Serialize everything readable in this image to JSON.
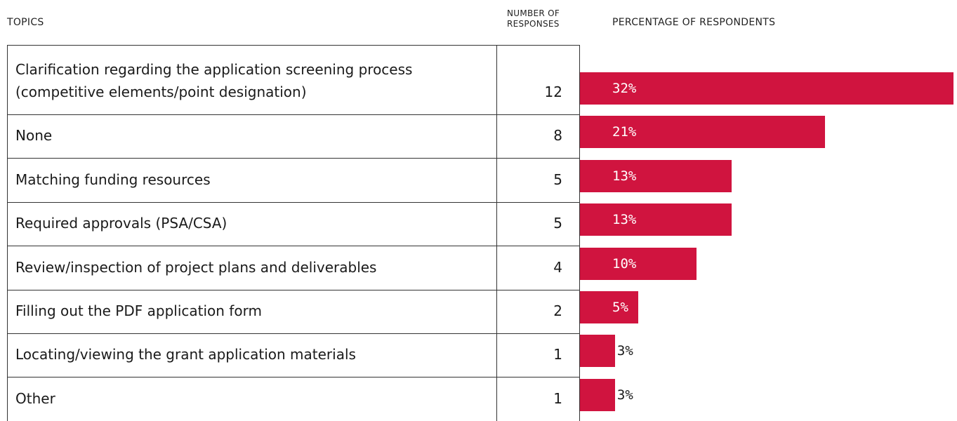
{
  "chart_data": {
    "type": "bar",
    "orientation": "horizontal",
    "columns": [
      "TOPICS",
      "NUMBER OF RESPONSES",
      "PERCENTAGE OF RESPONDENTS"
    ],
    "categories": [
      "Clarification regarding the application screening process (competitive elements/point designation)",
      "None",
      "Matching funding resources",
      "Required approvals (PSA/CSA)",
      "Review/inspection of project plans and deliverables",
      "Filling out the PDF application form",
      "Locating/viewing the grant application materials",
      "Other"
    ],
    "counts": [
      12,
      8,
      5,
      5,
      4,
      2,
      1,
      1
    ],
    "values": [
      32,
      21,
      13,
      13,
      10,
      5,
      3,
      3
    ],
    "value_labels": [
      "32%",
      "21%",
      "13%",
      "13%",
      "10%",
      "5%",
      "3%",
      "3%"
    ],
    "color": "#d0143f"
  }
}
